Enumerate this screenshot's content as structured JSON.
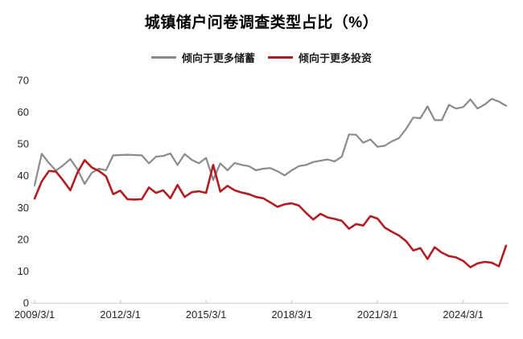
{
  "title": "城镇储户问卷调查类型占比（%）",
  "legend": [
    {
      "label": "倾向于更多储蓄",
      "color": "#8a8a8a"
    },
    {
      "label": "倾向于更多投资",
      "color": "#b01e23"
    }
  ],
  "colors": {
    "savings_line": "#8a8a8a",
    "investment_line": "#b01e23",
    "axis_line": "#d9d9d9",
    "tick_mark": "#c9c9c9",
    "tick_label": "#262626",
    "background": "#ffffff"
  },
  "chart_data": {
    "type": "line",
    "title": "城镇储户问卷调查类型占比（%）",
    "xlabel": "",
    "ylabel": "",
    "x_start": "2009/3/1",
    "x_interval": "quarter",
    "x_tick_labels": [
      "2009/3/1",
      "2012/3/1",
      "2015/3/1",
      "2018/3/1",
      "2021/3/1",
      "2024/3/1"
    ],
    "x_tick_indices": [
      0,
      12,
      24,
      36,
      48,
      60
    ],
    "y_ticks": [
      0,
      10,
      20,
      30,
      40,
      50,
      60,
      70
    ],
    "ylim": [
      0,
      70
    ],
    "grid": false,
    "legend_position": "top",
    "series": [
      {
        "name": "倾向于更多储蓄",
        "color": "#8a8a8a",
        "values": [
          37.0,
          46.9,
          44.0,
          41.6,
          43.3,
          45.2,
          42.0,
          37.4,
          40.9,
          42.2,
          41.7,
          46.4,
          46.5,
          46.6,
          46.5,
          46.4,
          43.9,
          46.0,
          46.2,
          47.0,
          43.4,
          46.8,
          45.0,
          43.9,
          45.6,
          38.7,
          43.9,
          41.7,
          44.0,
          43.4,
          43.0,
          41.7,
          42.2,
          42.4,
          41.4,
          40.1,
          41.7,
          43.0,
          43.4,
          44.3,
          44.7,
          45.1,
          44.5,
          46.0,
          53.0,
          52.9,
          50.4,
          51.4,
          49.1,
          49.4,
          50.8,
          51.8,
          54.7,
          58.3,
          58.1,
          61.8,
          57.5,
          57.5,
          62.3,
          61.1,
          61.6,
          64.0,
          61.1,
          62.4,
          64.2,
          63.3,
          62.0
        ]
      },
      {
        "name": "倾向于更多投资",
        "color": "#b01e23",
        "values": [
          32.8,
          38.2,
          41.5,
          41.3,
          38.5,
          35.4,
          41.0,
          44.9,
          42.6,
          41.5,
          39.8,
          34.2,
          35.3,
          32.6,
          32.5,
          32.6,
          36.3,
          34.6,
          35.4,
          32.9,
          37.1,
          33.3,
          34.8,
          35.1,
          34.6,
          43.4,
          35.0,
          36.8,
          35.4,
          34.7,
          34.2,
          33.3,
          32.9,
          31.6,
          30.2,
          31.0,
          31.3,
          30.6,
          28.3,
          26.2,
          28.0,
          26.9,
          26.4,
          25.8,
          23.3,
          24.8,
          24.3,
          27.3,
          26.5,
          23.7,
          22.4,
          21.2,
          19.4,
          16.5,
          17.2,
          13.8,
          17.5,
          15.8,
          14.7,
          14.3,
          13.2,
          11.2,
          12.4,
          12.9,
          12.6,
          11.5,
          18.0
        ]
      }
    ]
  }
}
